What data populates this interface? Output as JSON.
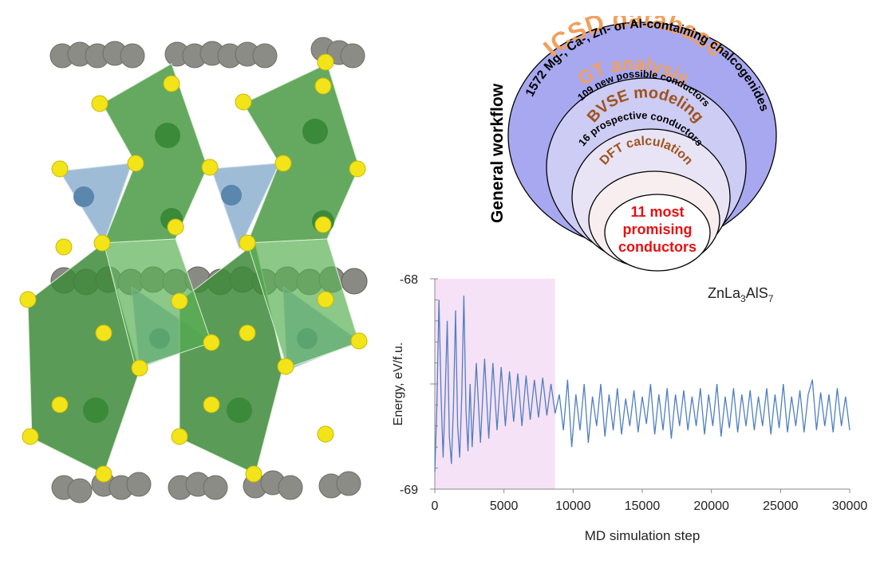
{
  "workflow": {
    "side_label": "General  workflow",
    "levels": [
      {
        "title": "ICSD database",
        "subtitle": "1572 Mg-, Ca-, Zn- or Al-containing chalcogenides"
      },
      {
        "title": "GT analysis",
        "subtitle": "109 new possible conductors"
      },
      {
        "title": "BVSE modeling",
        "subtitle": "16 prospective conductors"
      },
      {
        "title": "DFT calculation",
        "subtitle": ""
      }
    ],
    "core_lines": [
      "11 most",
      "promising",
      "conductors"
    ],
    "colors": {
      "outer_fill": "#a8a8f0",
      "ring2_fill": "#ccccf4",
      "ring3_fill": "#e8e4f6",
      "ring4_fill": "#f8eef0",
      "title_orange": "#f0a060",
      "title_brown": "#a0521c",
      "core_text": "#e81010"
    }
  },
  "chart_data": {
    "type": "line",
    "title": "",
    "annotation": {
      "base": "ZnLa",
      "sub1": "3",
      "mid": "AlS",
      "sub2": "7"
    },
    "xlabel": "MD simulation step",
    "ylabel": "Energy, eV/f.u.",
    "xlim": [
      0,
      30000
    ],
    "ylim": [
      -69,
      -68
    ],
    "x_ticks": [
      "0",
      "5000",
      "10000",
      "15000",
      "20000",
      "25000",
      "30000"
    ],
    "y_ticks": [
      "-68",
      "-69"
    ],
    "highlight_region": {
      "x_start": 0,
      "x_end": 8700,
      "color": "#f6e2f6"
    },
    "line_color": "#4f7fc0",
    "series": [
      {
        "x": [
          0,
          150,
          300,
          450,
          600,
          750,
          900,
          1050,
          1200,
          1350,
          1500,
          1650,
          1800,
          1950,
          2100,
          2250,
          2400,
          2550,
          2700,
          3000,
          3300,
          3600,
          3900,
          4200,
          4500,
          4800,
          5100,
          5400,
          5700,
          6000,
          6300,
          6600,
          6900,
          7200,
          7500,
          7800,
          8100,
          8400,
          8700,
          9000,
          9300,
          9600,
          9900,
          10200,
          10500,
          10800,
          11100,
          11400,
          11700,
          12000,
          12300,
          12600,
          12900,
          13200,
          13500,
          13800,
          14100,
          14400,
          14700,
          15000,
          15300,
          15600,
          15900,
          16200,
          16500,
          16800,
          17100,
          17400,
          17700,
          18000,
          18300,
          18600,
          18900,
          19200,
          19500,
          19800,
          20100,
          20400,
          20700,
          21000,
          21300,
          21600,
          21900,
          22200,
          22500,
          22800,
          23100,
          23400,
          23700,
          24000,
          24300,
          24600,
          24900,
          25200,
          25500,
          25800,
          26100,
          26400,
          26700,
          27000,
          27300,
          27600,
          27900,
          28200,
          28500,
          28800,
          29100,
          29400,
          29700,
          30000
        ],
        "values": [
          -68.92,
          -68.6,
          -68.1,
          -68.55,
          -68.85,
          -68.55,
          -68.2,
          -68.75,
          -68.88,
          -68.6,
          -68.15,
          -68.7,
          -68.85,
          -68.55,
          -68.08,
          -68.62,
          -68.82,
          -68.5,
          -68.8,
          -68.4,
          -68.78,
          -68.38,
          -68.76,
          -68.4,
          -68.72,
          -68.42,
          -68.7,
          -68.44,
          -68.68,
          -68.45,
          -68.7,
          -68.46,
          -68.67,
          -68.48,
          -68.66,
          -68.47,
          -68.65,
          -68.5,
          -68.64,
          -68.55,
          -68.72,
          -68.48,
          -68.8,
          -68.55,
          -68.72,
          -68.5,
          -68.78,
          -68.56,
          -68.7,
          -68.5,
          -68.75,
          -68.55,
          -68.72,
          -68.52,
          -68.74,
          -68.57,
          -68.7,
          -68.53,
          -68.73,
          -68.56,
          -68.69,
          -68.5,
          -68.74,
          -68.55,
          -68.72,
          -68.52,
          -68.76,
          -68.55,
          -68.7,
          -68.53,
          -68.72,
          -68.56,
          -68.7,
          -68.52,
          -68.74,
          -68.55,
          -68.7,
          -68.5,
          -68.75,
          -68.56,
          -68.71,
          -68.52,
          -68.73,
          -68.55,
          -68.7,
          -68.53,
          -68.72,
          -68.56,
          -68.7,
          -68.52,
          -68.74,
          -68.55,
          -68.71,
          -68.5,
          -68.73,
          -68.56,
          -68.7,
          -68.53,
          -68.73,
          -68.55,
          -68.48,
          -68.72,
          -68.54,
          -68.7,
          -68.55,
          -68.73,
          -68.52,
          -68.7,
          -68.56,
          -68.72
        ]
      }
    ]
  }
}
